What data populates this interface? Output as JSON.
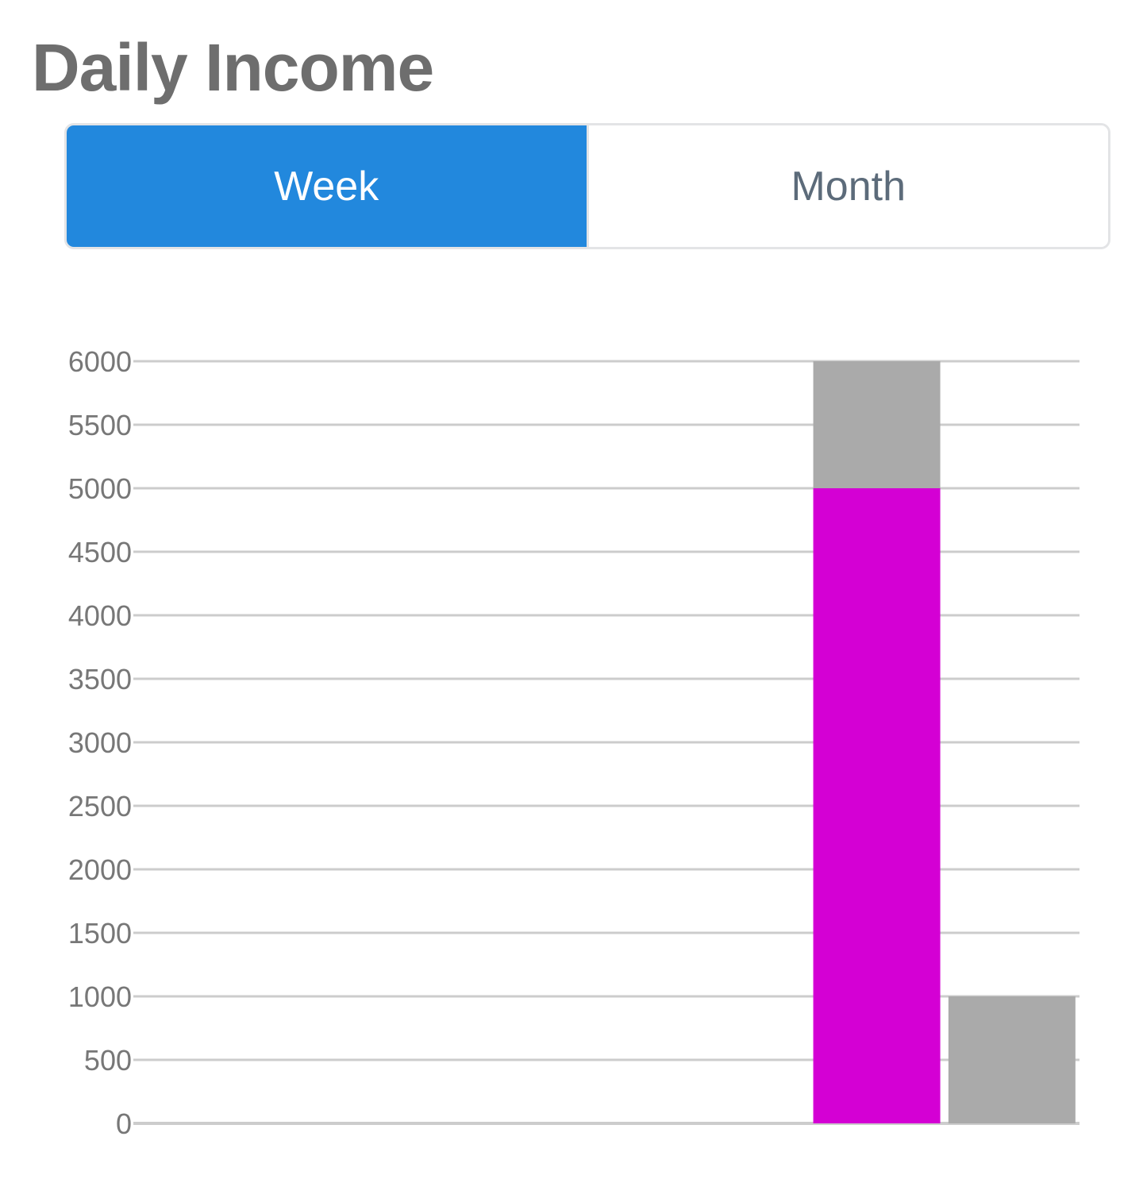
{
  "title": "Daily Income",
  "tabs": [
    {
      "label": "Week",
      "active": true
    },
    {
      "label": "Month",
      "active": false
    }
  ],
  "colors": {
    "accent": "#2288dd",
    "tab_text": "#5c6b7a",
    "title": "#6e6e6e",
    "series_primary": "#d400d4",
    "series_secondary": "#aaaaaa",
    "grid": "#cccccc",
    "tick_text": "#777777"
  },
  "chart_data": {
    "type": "bar",
    "stacked": true,
    "categories": [
      "",
      "",
      "",
      "",
      "",
      "",
      ""
    ],
    "series": [
      {
        "values": [
          0,
          0,
          0,
          0,
          0,
          5000,
          0
        ]
      },
      {
        "values": [
          0,
          0,
          0,
          0,
          0,
          1000,
          1000
        ]
      }
    ],
    "ylim": [
      0,
      6000
    ],
    "yticks": [
      0,
      500,
      1000,
      1500,
      2000,
      2500,
      3000,
      3500,
      4000,
      4500,
      5000,
      5500,
      6000
    ],
    "grid": true,
    "legend": "none"
  }
}
